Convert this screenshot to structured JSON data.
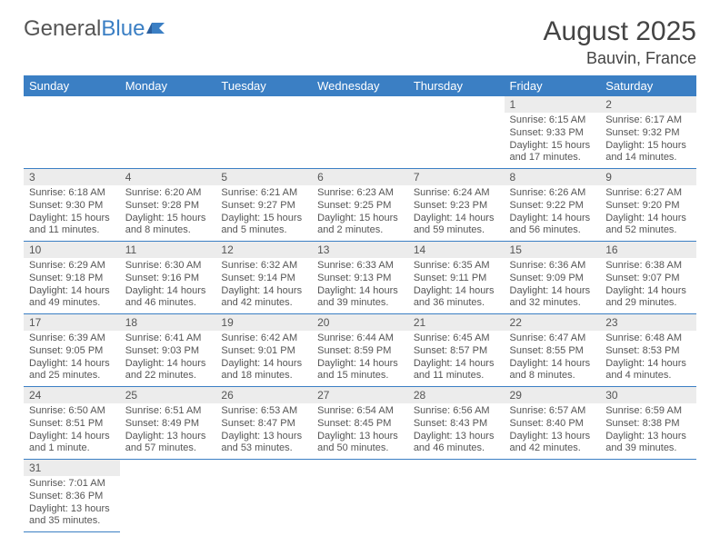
{
  "logo": {
    "part1": "General",
    "part2": "Blue"
  },
  "title": "August 2025",
  "location": "Bauvin, France",
  "colors": {
    "header_bg": "#3b7fc4",
    "header_text": "#ffffff",
    "daynum_bg": "#ececec",
    "text": "#555555",
    "divider": "#3b7fc4",
    "page_bg": "#ffffff"
  },
  "day_headers": [
    "Sunday",
    "Monday",
    "Tuesday",
    "Wednesday",
    "Thursday",
    "Friday",
    "Saturday"
  ],
  "weeks": [
    [
      null,
      null,
      null,
      null,
      null,
      {
        "n": "1",
        "sr": "Sunrise: 6:15 AM",
        "ss": "Sunset: 9:33 PM",
        "dl": "Daylight: 15 hours and 17 minutes."
      },
      {
        "n": "2",
        "sr": "Sunrise: 6:17 AM",
        "ss": "Sunset: 9:32 PM",
        "dl": "Daylight: 15 hours and 14 minutes."
      }
    ],
    [
      {
        "n": "3",
        "sr": "Sunrise: 6:18 AM",
        "ss": "Sunset: 9:30 PM",
        "dl": "Daylight: 15 hours and 11 minutes."
      },
      {
        "n": "4",
        "sr": "Sunrise: 6:20 AM",
        "ss": "Sunset: 9:28 PM",
        "dl": "Daylight: 15 hours and 8 minutes."
      },
      {
        "n": "5",
        "sr": "Sunrise: 6:21 AM",
        "ss": "Sunset: 9:27 PM",
        "dl": "Daylight: 15 hours and 5 minutes."
      },
      {
        "n": "6",
        "sr": "Sunrise: 6:23 AM",
        "ss": "Sunset: 9:25 PM",
        "dl": "Daylight: 15 hours and 2 minutes."
      },
      {
        "n": "7",
        "sr": "Sunrise: 6:24 AM",
        "ss": "Sunset: 9:23 PM",
        "dl": "Daylight: 14 hours and 59 minutes."
      },
      {
        "n": "8",
        "sr": "Sunrise: 6:26 AM",
        "ss": "Sunset: 9:22 PM",
        "dl": "Daylight: 14 hours and 56 minutes."
      },
      {
        "n": "9",
        "sr": "Sunrise: 6:27 AM",
        "ss": "Sunset: 9:20 PM",
        "dl": "Daylight: 14 hours and 52 minutes."
      }
    ],
    [
      {
        "n": "10",
        "sr": "Sunrise: 6:29 AM",
        "ss": "Sunset: 9:18 PM",
        "dl": "Daylight: 14 hours and 49 minutes."
      },
      {
        "n": "11",
        "sr": "Sunrise: 6:30 AM",
        "ss": "Sunset: 9:16 PM",
        "dl": "Daylight: 14 hours and 46 minutes."
      },
      {
        "n": "12",
        "sr": "Sunrise: 6:32 AM",
        "ss": "Sunset: 9:14 PM",
        "dl": "Daylight: 14 hours and 42 minutes."
      },
      {
        "n": "13",
        "sr": "Sunrise: 6:33 AM",
        "ss": "Sunset: 9:13 PM",
        "dl": "Daylight: 14 hours and 39 minutes."
      },
      {
        "n": "14",
        "sr": "Sunrise: 6:35 AM",
        "ss": "Sunset: 9:11 PM",
        "dl": "Daylight: 14 hours and 36 minutes."
      },
      {
        "n": "15",
        "sr": "Sunrise: 6:36 AM",
        "ss": "Sunset: 9:09 PM",
        "dl": "Daylight: 14 hours and 32 minutes."
      },
      {
        "n": "16",
        "sr": "Sunrise: 6:38 AM",
        "ss": "Sunset: 9:07 PM",
        "dl": "Daylight: 14 hours and 29 minutes."
      }
    ],
    [
      {
        "n": "17",
        "sr": "Sunrise: 6:39 AM",
        "ss": "Sunset: 9:05 PM",
        "dl": "Daylight: 14 hours and 25 minutes."
      },
      {
        "n": "18",
        "sr": "Sunrise: 6:41 AM",
        "ss": "Sunset: 9:03 PM",
        "dl": "Daylight: 14 hours and 22 minutes."
      },
      {
        "n": "19",
        "sr": "Sunrise: 6:42 AM",
        "ss": "Sunset: 9:01 PM",
        "dl": "Daylight: 14 hours and 18 minutes."
      },
      {
        "n": "20",
        "sr": "Sunrise: 6:44 AM",
        "ss": "Sunset: 8:59 PM",
        "dl": "Daylight: 14 hours and 15 minutes."
      },
      {
        "n": "21",
        "sr": "Sunrise: 6:45 AM",
        "ss": "Sunset: 8:57 PM",
        "dl": "Daylight: 14 hours and 11 minutes."
      },
      {
        "n": "22",
        "sr": "Sunrise: 6:47 AM",
        "ss": "Sunset: 8:55 PM",
        "dl": "Daylight: 14 hours and 8 minutes."
      },
      {
        "n": "23",
        "sr": "Sunrise: 6:48 AM",
        "ss": "Sunset: 8:53 PM",
        "dl": "Daylight: 14 hours and 4 minutes."
      }
    ],
    [
      {
        "n": "24",
        "sr": "Sunrise: 6:50 AM",
        "ss": "Sunset: 8:51 PM",
        "dl": "Daylight: 14 hours and 1 minute."
      },
      {
        "n": "25",
        "sr": "Sunrise: 6:51 AM",
        "ss": "Sunset: 8:49 PM",
        "dl": "Daylight: 13 hours and 57 minutes."
      },
      {
        "n": "26",
        "sr": "Sunrise: 6:53 AM",
        "ss": "Sunset: 8:47 PM",
        "dl": "Daylight: 13 hours and 53 minutes."
      },
      {
        "n": "27",
        "sr": "Sunrise: 6:54 AM",
        "ss": "Sunset: 8:45 PM",
        "dl": "Daylight: 13 hours and 50 minutes."
      },
      {
        "n": "28",
        "sr": "Sunrise: 6:56 AM",
        "ss": "Sunset: 8:43 PM",
        "dl": "Daylight: 13 hours and 46 minutes."
      },
      {
        "n": "29",
        "sr": "Sunrise: 6:57 AM",
        "ss": "Sunset: 8:40 PM",
        "dl": "Daylight: 13 hours and 42 minutes."
      },
      {
        "n": "30",
        "sr": "Sunrise: 6:59 AM",
        "ss": "Sunset: 8:38 PM",
        "dl": "Daylight: 13 hours and 39 minutes."
      }
    ],
    [
      {
        "n": "31",
        "sr": "Sunrise: 7:01 AM",
        "ss": "Sunset: 8:36 PM",
        "dl": "Daylight: 13 hours and 35 minutes."
      },
      null,
      null,
      null,
      null,
      null,
      null
    ]
  ]
}
